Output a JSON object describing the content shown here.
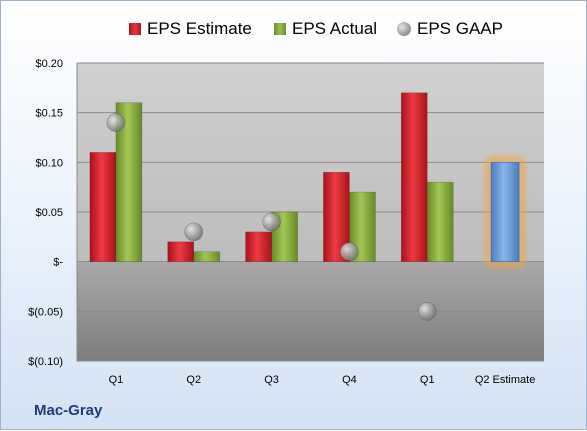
{
  "company": "Mac-Gray",
  "legend": {
    "estimate": "EPS Estimate",
    "actual": "EPS Actual",
    "gaap": "EPS GAAP"
  },
  "colors": {
    "estimate": "#d4212a",
    "actual": "#8cb040",
    "gaap": "#9a9a9a",
    "projection": "#6a9ad8",
    "projection_glow": "#f4a341"
  },
  "chart_data": {
    "type": "bar",
    "categories": [
      "Q1",
      "Q2",
      "Q3",
      "Q4",
      "Q1",
      "Q2 Estimate"
    ],
    "series": [
      {
        "name": "EPS Estimate",
        "values": [
          0.11,
          0.02,
          0.03,
          0.09,
          0.17,
          null
        ]
      },
      {
        "name": "EPS Actual",
        "values": [
          0.16,
          0.01,
          0.05,
          0.07,
          0.08,
          null
        ]
      },
      {
        "name": "EPS GAAP",
        "values": [
          0.14,
          0.03,
          0.04,
          0.01,
          -0.05,
          null
        ]
      }
    ],
    "projection": {
      "category": "Q2 Estimate",
      "value": 0.1
    },
    "ylim": [
      -0.1,
      0.2
    ],
    "yticks": [
      0.2,
      0.15,
      0.1,
      0.05,
      0.0,
      -0.05,
      -0.1
    ],
    "ytick_labels": [
      "$0.20",
      "$0.15",
      "$0.10",
      "$0.05",
      "$-",
      "$(0.05)",
      "$(0.10)"
    ],
    "grid": true,
    "legend_position": "top"
  }
}
